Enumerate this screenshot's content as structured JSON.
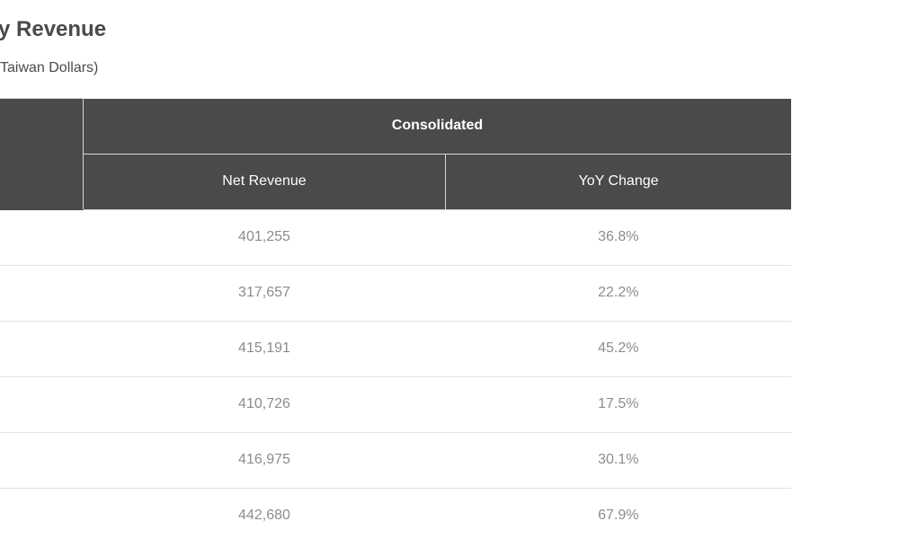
{
  "header": {
    "title": "y Revenue",
    "subtitle": "Taiwan Dollars)"
  },
  "table": {
    "month_header": "th",
    "group_header": "Consolidated",
    "columns": [
      "Net Revenue",
      "YoY Change"
    ],
    "rows": [
      {
        "net_revenue": "401,255",
        "yoy_change": "36.8%"
      },
      {
        "net_revenue": "317,657",
        "yoy_change": "22.2%"
      },
      {
        "net_revenue": "415,191",
        "yoy_change": "45.2%"
      },
      {
        "net_revenue": "410,726",
        "yoy_change": "17.5%"
      },
      {
        "net_revenue": "416,975",
        "yoy_change": "30.1%"
      },
      {
        "net_revenue": "442,680",
        "yoy_change": "67.9%"
      }
    ]
  },
  "colors": {
    "header_bg": "#4a4a4a",
    "header_text": "#ffffff",
    "cell_text": "#8c8c8c",
    "row_divider": "#e2e2e2"
  }
}
